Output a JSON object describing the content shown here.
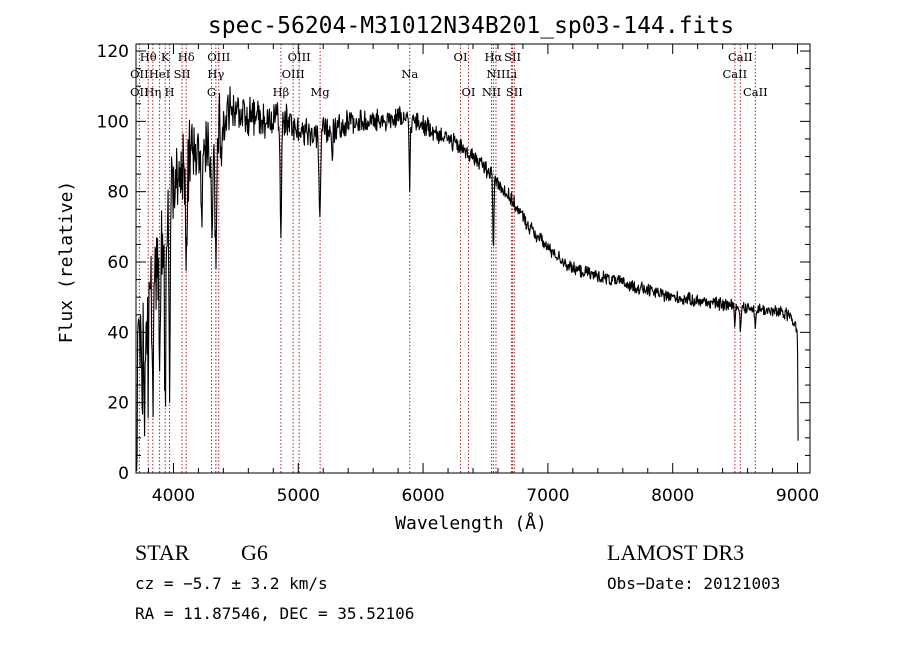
{
  "chart_data": {
    "type": "line",
    "title": "spec-56204-M31012N34B201_sp03-144.fits",
    "xlabel": "Wavelength (Å)",
    "ylabel": "Flux (relative)",
    "xlim": [
      3700,
      9100
    ],
    "ylim": [
      0,
      122
    ],
    "xticks": [
      4000,
      5000,
      6000,
      7000,
      8000,
      9000
    ],
    "yticks": [
      0,
      20,
      40,
      60,
      80,
      100,
      120
    ],
    "grid": false,
    "line_color": "#000000",
    "marker_color": "#b22222",
    "continuum": [
      {
        "x": 3705,
        "y": 2
      },
      {
        "x": 3715,
        "y": 30
      },
      {
        "x": 3740,
        "y": 42
      },
      {
        "x": 3780,
        "y": 48
      },
      {
        "x": 3850,
        "y": 52
      },
      {
        "x": 3900,
        "y": 62
      },
      {
        "x": 3950,
        "y": 72
      },
      {
        "x": 4000,
        "y": 84
      },
      {
        "x": 4050,
        "y": 86
      },
      {
        "x": 4150,
        "y": 90
      },
      {
        "x": 4250,
        "y": 92
      },
      {
        "x": 4350,
        "y": 99
      },
      {
        "x": 4450,
        "y": 103
      },
      {
        "x": 4550,
        "y": 102
      },
      {
        "x": 4650,
        "y": 101
      },
      {
        "x": 4750,
        "y": 100
      },
      {
        "x": 4850,
        "y": 101
      },
      {
        "x": 5000,
        "y": 98
      },
      {
        "x": 5100,
        "y": 96
      },
      {
        "x": 5200,
        "y": 97
      },
      {
        "x": 5300,
        "y": 98
      },
      {
        "x": 5400,
        "y": 100
      },
      {
        "x": 5600,
        "y": 100
      },
      {
        "x": 5800,
        "y": 101
      },
      {
        "x": 6000,
        "y": 99
      },
      {
        "x": 6200,
        "y": 95
      },
      {
        "x": 6400,
        "y": 90
      },
      {
        "x": 6550,
        "y": 85
      },
      {
        "x": 6700,
        "y": 78
      },
      {
        "x": 6850,
        "y": 70
      },
      {
        "x": 7000,
        "y": 64
      },
      {
        "x": 7200,
        "y": 58
      },
      {
        "x": 7400,
        "y": 56
      },
      {
        "x": 7600,
        "y": 54
      },
      {
        "x": 7800,
        "y": 52
      },
      {
        "x": 8000,
        "y": 50
      },
      {
        "x": 8200,
        "y": 49
      },
      {
        "x": 8400,
        "y": 48
      },
      {
        "x": 8600,
        "y": 47
      },
      {
        "x": 8800,
        "y": 46
      },
      {
        "x": 8950,
        "y": 45
      },
      {
        "x": 9000,
        "y": 40
      },
      {
        "x": 9005,
        "y": 8
      }
    ],
    "absorption_features": [
      {
        "x": 3750,
        "depth": 26,
        "width": 6
      },
      {
        "x": 3771,
        "depth": 30,
        "width": 6
      },
      {
        "x": 3798,
        "depth": 28,
        "width": 6
      },
      {
        "x": 3835,
        "depth": 30,
        "width": 6
      },
      {
        "x": 3889,
        "depth": 28,
        "width": 7
      },
      {
        "x": 3934,
        "depth": 52,
        "width": 7
      },
      {
        "x": 3969,
        "depth": 50,
        "width": 7
      },
      {
        "x": 4102,
        "depth": 28,
        "width": 10
      },
      {
        "x": 4227,
        "depth": 20,
        "width": 8
      },
      {
        "x": 4308,
        "depth": 30,
        "width": 10
      },
      {
        "x": 4340,
        "depth": 35,
        "width": 10
      },
      {
        "x": 4384,
        "depth": 12,
        "width": 8
      },
      {
        "x": 4861,
        "depth": 32,
        "width": 8
      },
      {
        "x": 5172,
        "depth": 26,
        "width": 8
      },
      {
        "x": 5270,
        "depth": 8,
        "width": 8
      },
      {
        "x": 5893,
        "depth": 18,
        "width": 6
      },
      {
        "x": 6563,
        "depth": 22,
        "width": 6
      },
      {
        "x": 8498,
        "depth": 4,
        "width": 6
      },
      {
        "x": 8542,
        "depth": 7,
        "width": 6
      },
      {
        "x": 8662,
        "depth": 6,
        "width": 6
      }
    ],
    "noise_profile": [
      {
        "x": 3700,
        "amp": 14
      },
      {
        "x": 4000,
        "amp": 10
      },
      {
        "x": 4500,
        "amp": 6
      },
      {
        "x": 5000,
        "amp": 3.5
      },
      {
        "x": 6000,
        "amp": 2.5
      },
      {
        "x": 7000,
        "amp": 1.6
      },
      {
        "x": 9000,
        "amp": 1.6
      }
    ],
    "annotations": [
      {
        "label": "Hθ",
        "x": 3798,
        "row": 1
      },
      {
        "label": "OII",
        "x": 3727,
        "row": 2
      },
      {
        "label": "OII",
        "x": 3727,
        "row": 3
      },
      {
        "label": "Hη",
        "x": 3835,
        "row": 3
      },
      {
        "label": "HeI",
        "x": 3889,
        "row": 2
      },
      {
        "label": "K",
        "x": 3934,
        "row": 1
      },
      {
        "label": "H",
        "x": 3969,
        "row": 3
      },
      {
        "label": "SII",
        "x": 4069,
        "row": 2
      },
      {
        "label": "Hδ",
        "x": 4102,
        "row": 1
      },
      {
        "label": "OIII",
        "x": 4363,
        "row": 1
      },
      {
        "label": "Hγ",
        "x": 4340,
        "row": 2
      },
      {
        "label": "G",
        "x": 4305,
        "row": 3
      },
      {
        "label": "Hβ",
        "x": 4861,
        "row": 3
      },
      {
        "label": "OIII",
        "x": 5007,
        "row": 1
      },
      {
        "label": "OIII",
        "x": 4959,
        "row": 2
      },
      {
        "label": "Mg",
        "x": 5175,
        "row": 3
      },
      {
        "label": "Na",
        "x": 5893,
        "row": 2
      },
      {
        "label": "OI",
        "x": 6300,
        "row": 1
      },
      {
        "label": "OI",
        "x": 6364,
        "row": 3
      },
      {
        "label": "Hα",
        "x": 6563,
        "row": 1
      },
      {
        "label": "SII",
        "x": 6717,
        "row": 1
      },
      {
        "label": "NII",
        "x": 6584,
        "row": 2
      },
      {
        "label": "Li",
        "x": 6708,
        "row": 2
      },
      {
        "label": "NII",
        "x": 6548,
        "row": 3
      },
      {
        "label": "SII",
        "x": 6731,
        "row": 3
      },
      {
        "label": "CaII",
        "x": 8542,
        "row": 1
      },
      {
        "label": "CaII",
        "x": 8498,
        "row": 2
      },
      {
        "label": "CaII",
        "x": 8662,
        "row": 3
      }
    ],
    "marker_lines": [
      3727,
      3798,
      3835,
      3889,
      3934,
      3969,
      4069,
      4102,
      4305,
      4340,
      4363,
      4861,
      4959,
      5007,
      5175,
      5893,
      6300,
      6364,
      6548,
      6563,
      6584,
      6708,
      6717,
      6731,
      8498,
      8542,
      8662
    ]
  },
  "info": {
    "object_class": "STAR",
    "subclass": "G6",
    "survey": "LAMOST DR3",
    "redshift_text": "cz = −5.7 ± 3.2 km/s",
    "obs_date": "Obs−Date: 20121003",
    "coords": "RA =  11.87546, DEC =  35.52106"
  }
}
